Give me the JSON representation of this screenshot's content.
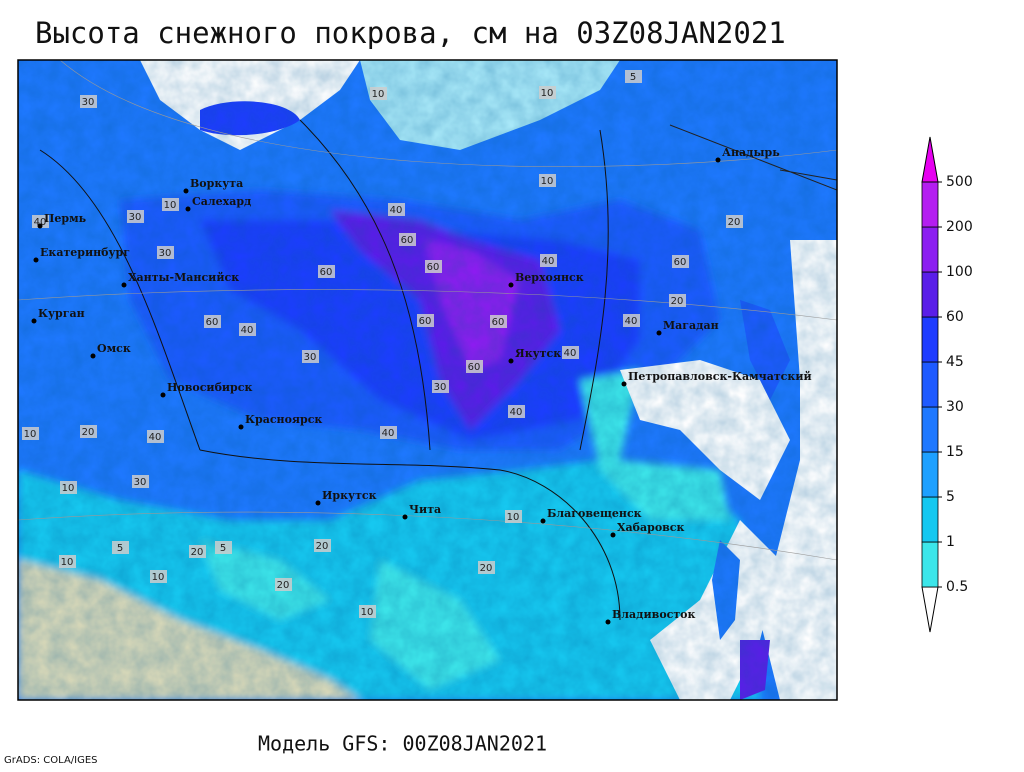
{
  "title": "Высота снежного покрова, см на 03Z08JAN2021",
  "footer": "Модель GFS: 00Z08JAN2021",
  "credit": "GrADS: COLA/IGES",
  "colorbar": {
    "levels": [
      0.5,
      1,
      5,
      15,
      30,
      45,
      60,
      100,
      200,
      500
    ],
    "colors": [
      "#a0f0f0",
      "#3ce6ea",
      "#14c8f0",
      "#1ea0ff",
      "#1e78ff",
      "#1e5aff",
      "#1e3cff",
      "#5a1ee8",
      "#8c1ef0",
      "#b41ef0",
      "#e600f0"
    ]
  },
  "cities": [
    "Воркута",
    "Салехард",
    "Пермь",
    "Екатеринбург",
    "Ханты-Мансийск",
    "Курган",
    "Омск",
    "Новосибирск",
    "Красноярск",
    "Иркутск",
    "Чита",
    "Верхоянск",
    "Якутск",
    "Магадан",
    "Анадырь",
    "Петропавловск-Камчатский",
    "Благовещенск",
    "Хабаровск",
    "Владивосток"
  ],
  "contour_labels": [
    10,
    30,
    10,
    5,
    10,
    10,
    40,
    30,
    30,
    60,
    60,
    60,
    60,
    60,
    60,
    60,
    40,
    40,
    40,
    40,
    30,
    30,
    20,
    20,
    10,
    10,
    20,
    5,
    10,
    20,
    5,
    20,
    20,
    10,
    10,
    40,
    30,
    20,
    10,
    40,
    60,
    40,
    40
  ]
}
